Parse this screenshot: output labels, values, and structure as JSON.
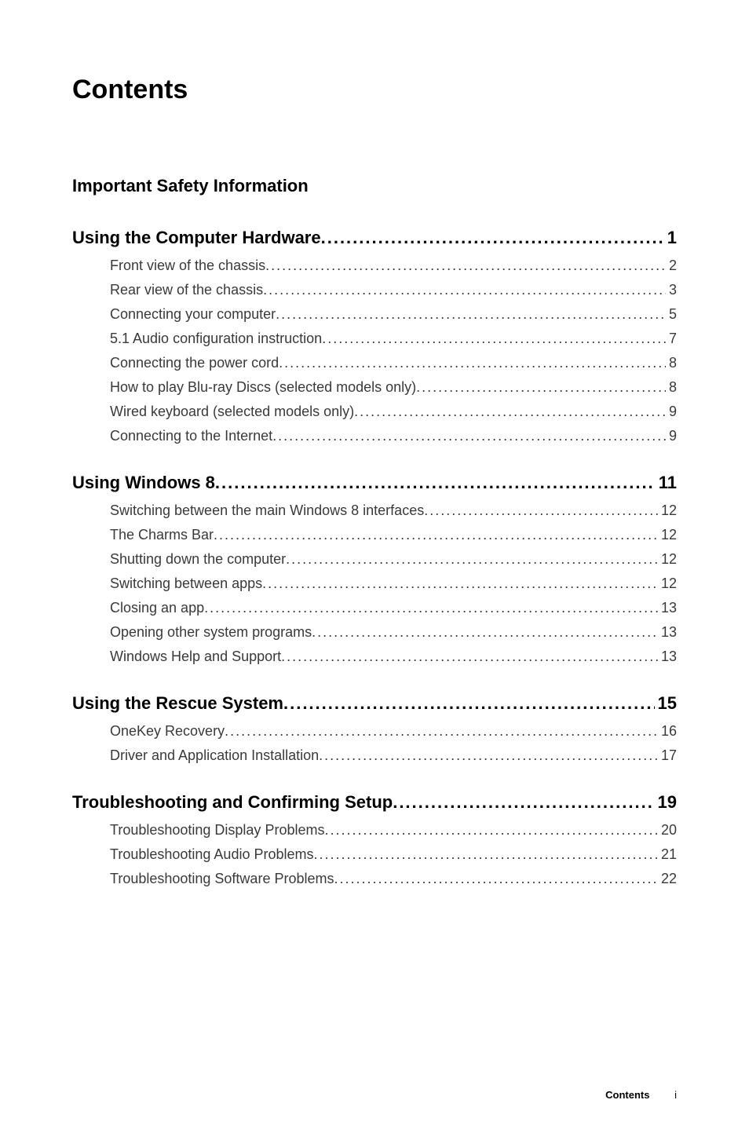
{
  "title": "Contents",
  "safety_heading": "Important Safety Information",
  "dots_section": " ........................................................................",
  "dots_entry": " ............................................................................................................................",
  "sections": [
    {
      "label": "Using the Computer Hardware",
      "page": " 1",
      "entries": [
        {
          "label": "Front view of the chassis",
          "page": "2"
        },
        {
          "label": "Rear view of the chassis",
          "page": "3"
        },
        {
          "label": "Connecting your computer",
          "page": "5"
        },
        {
          "label": "5.1 Audio configuration instruction",
          "page": "7"
        },
        {
          "label": "Connecting the power cord",
          "page": "8"
        },
        {
          "label": "How to play Blu-ray Discs (selected models only)",
          "page": "8"
        },
        {
          "label": "Wired keyboard (selected models only)",
          "page": "9"
        },
        {
          "label": "Connecting to the Internet",
          "page": "9"
        }
      ]
    },
    {
      "label": "Using Windows 8",
      "page": " 11",
      "entries": [
        {
          "label": "Switching between the main Windows 8 interfaces",
          "page": "12"
        },
        {
          "label": "The Charms Bar",
          "page": "12"
        },
        {
          "label": "Shutting down the computer",
          "page": "12"
        },
        {
          "label": "Switching between apps",
          "page": "12"
        },
        {
          "label": "Closing an app",
          "page": "13"
        },
        {
          "label": "Opening other system programs",
          "page": "13"
        },
        {
          "label": "Windows Help and Support",
          "page": "13"
        }
      ]
    },
    {
      "label": "Using the Rescue System",
      "page": " 15",
      "entries": [
        {
          "label": "OneKey Recovery",
          "page": "16"
        },
        {
          "label": "Driver and Application Installation",
          "page": "17"
        }
      ]
    },
    {
      "label": "Troubleshooting and Confirming Setup",
      "page": " 19",
      "entries": [
        {
          "label": "Troubleshooting Display Problems",
          "page": "20"
        },
        {
          "label": "Troubleshooting Audio Problems",
          "page": "21"
        },
        {
          "label": "Troubleshooting Software Problems",
          "page": "22"
        }
      ]
    }
  ],
  "footer": {
    "label": "Contents",
    "roman": "i"
  }
}
